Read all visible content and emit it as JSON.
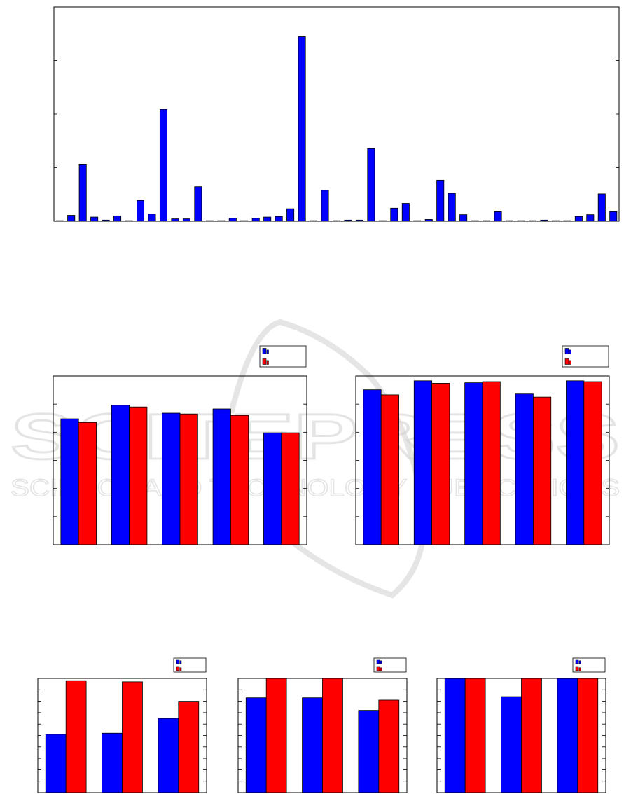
{
  "colors": {
    "series_a": "#0000ff",
    "series_b": "#ff0000",
    "axis": "#000000",
    "watermark": "#cfcfcf"
  },
  "watermark": {
    "line1": "SCITEPRESS",
    "line2": "SCIENCE AND TECHNOLOGY PUBLICATIONS"
  },
  "chart_data": [
    {
      "type": "bar",
      "ylim": [
        0,
        3.6
      ],
      "grid": false,
      "series": [
        {
          "values": [
            0.01,
            0.1,
            0.96,
            0.07,
            0.02,
            0.09,
            0.01,
            0.35,
            0.12,
            1.88,
            0.04,
            0.04,
            0.58,
            0.01,
            0.01,
            0.05,
            0.01,
            0.05,
            0.07,
            0.08,
            0.21,
            3.1,
            0.01,
            0.52,
            0.01,
            0.02,
            0.02,
            1.22,
            0.01,
            0.22,
            0.3,
            0.01,
            0.03,
            0.69,
            0.47,
            0.11,
            0.01,
            0.01,
            0.16,
            0.01,
            0.01,
            0.01,
            0.02,
            0.01,
            0.01,
            0.08,
            0.11,
            0.46,
            0.16
          ]
        }
      ]
    },
    {
      "type": "bar",
      "ylim": [
        0,
        0.6
      ],
      "grid": false,
      "legend": "top-right",
      "series": [
        {
          "values": [
            0.448,
            0.496,
            0.468,
            0.483,
            0.398
          ]
        },
        {
          "values": [
            0.435,
            0.49,
            0.465,
            0.46,
            0.398
          ]
        }
      ]
    },
    {
      "type": "bar",
      "ylim": [
        0,
        0.6
      ],
      "grid": false,
      "legend": "top-right",
      "series": [
        {
          "values": [
            0.551,
            0.583,
            0.576,
            0.536,
            0.583
          ]
        },
        {
          "values": [
            0.533,
            0.574,
            0.58,
            0.525,
            0.58
          ]
        }
      ]
    },
    {
      "type": "bar",
      "ylim": [
        0,
        1
      ],
      "grid": false,
      "legend": "top-right",
      "series": [
        {
          "values": [
            0.51,
            0.52,
            0.65
          ]
        },
        {
          "values": [
            0.98,
            0.97,
            0.8
          ]
        }
      ]
    },
    {
      "type": "bar",
      "ylim": [
        0,
        1
      ],
      "grid": false,
      "legend": "top-right",
      "series": [
        {
          "values": [
            0.83,
            0.83,
            0.72
          ]
        },
        {
          "values": [
            1.0,
            1.0,
            0.81
          ]
        }
      ]
    },
    {
      "type": "bar",
      "ylim": [
        0,
        1
      ],
      "grid": false,
      "legend": "top-right",
      "series": [
        {
          "values": [
            1.0,
            0.84,
            1.0
          ]
        },
        {
          "values": [
            1.0,
            1.0,
            1.0
          ]
        }
      ]
    }
  ]
}
